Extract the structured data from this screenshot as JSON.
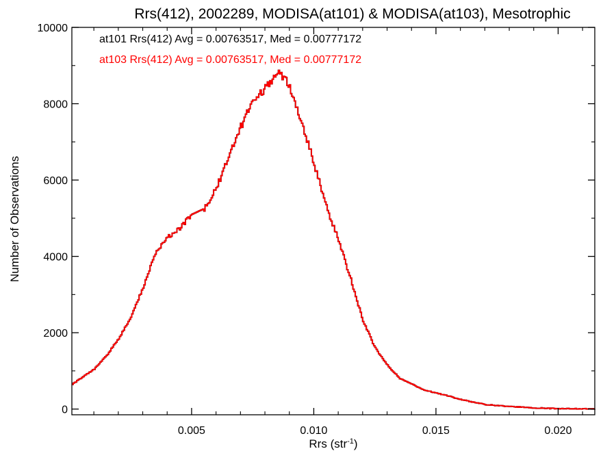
{
  "chart_data": {
    "type": "line",
    "step": true,
    "title": "Rrs(412), 2002289, MODISA(at101) & MODISA(at103), Mesotrophic",
    "xlabel_main": "Rrs (str",
    "xlabel_sup": "-1",
    "xlabel_close": ")",
    "ylabel": "Number of Observations",
    "xlim": [
      0.0001,
      0.0215
    ],
    "ylim": [
      -150,
      10000
    ],
    "x_ticks": [
      0.005,
      0.01,
      0.015,
      0.02
    ],
    "x_tick_labels": [
      "0.005",
      "0.010",
      "0.015",
      "0.020"
    ],
    "y_ticks": [
      0,
      2000,
      4000,
      6000,
      8000,
      10000
    ],
    "y_tick_labels": [
      "0",
      "2000",
      "4000",
      "6000",
      "8000",
      "10000"
    ],
    "grid": false,
    "legend_position": "top-left",
    "annotations": [
      {
        "text": "at101 Rrs(412) Avg = 0.00763517, Med = 0.00777172",
        "color": "#000000"
      },
      {
        "text": "at103 Rrs(412) Avg = 0.00763517, Med = 0.00777172",
        "color": "#ff0000"
      }
    ],
    "series": [
      {
        "name": "at101",
        "color": "#000000",
        "x": [
          0.0001,
          0.001,
          0.0015,
          0.002,
          0.0025,
          0.003,
          0.0035,
          0.004,
          0.0045,
          0.005,
          0.0055,
          0.006,
          0.0065,
          0.007,
          0.0075,
          0.008,
          0.0085,
          0.0088,
          0.009,
          0.0095,
          0.01,
          0.0105,
          0.011,
          0.0115,
          0.012,
          0.0125,
          0.013,
          0.0135,
          0.014,
          0.0145,
          0.015,
          0.0155,
          0.016,
          0.0165,
          0.017,
          0.0175,
          0.018,
          0.0185,
          0.019,
          0.0195,
          0.02,
          0.0205,
          0.021,
          0.0215
        ],
        "y": [
          650,
          1050,
          1400,
          1850,
          2400,
          3200,
          4100,
          4500,
          4750,
          5100,
          5250,
          5800,
          6600,
          7400,
          8100,
          8400,
          8800,
          8650,
          8400,
          7500,
          6400,
          5300,
          4400,
          3400,
          2300,
          1600,
          1150,
          800,
          650,
          500,
          420,
          340,
          250,
          180,
          120,
          90,
          70,
          50,
          30,
          20,
          10,
          8,
          5,
          3
        ]
      },
      {
        "name": "at103",
        "color": "#ff0000",
        "x": [
          0.0001,
          0.001,
          0.0015,
          0.002,
          0.0025,
          0.003,
          0.0035,
          0.004,
          0.0045,
          0.005,
          0.0055,
          0.006,
          0.0065,
          0.007,
          0.0075,
          0.008,
          0.0085,
          0.0088,
          0.009,
          0.0095,
          0.01,
          0.0105,
          0.011,
          0.0115,
          0.012,
          0.0125,
          0.013,
          0.0135,
          0.014,
          0.0145,
          0.015,
          0.0155,
          0.016,
          0.0165,
          0.017,
          0.0175,
          0.018,
          0.0185,
          0.019,
          0.0195,
          0.02,
          0.0205,
          0.021,
          0.0215
        ],
        "y": [
          650,
          1050,
          1400,
          1850,
          2400,
          3200,
          4100,
          4500,
          4750,
          5100,
          5250,
          5800,
          6600,
          7400,
          8100,
          8400,
          8800,
          8650,
          8400,
          7500,
          6400,
          5300,
          4400,
          3400,
          2300,
          1600,
          1150,
          800,
          650,
          500,
          420,
          340,
          250,
          180,
          120,
          90,
          70,
          50,
          30,
          20,
          10,
          8,
          5,
          3
        ]
      }
    ]
  }
}
